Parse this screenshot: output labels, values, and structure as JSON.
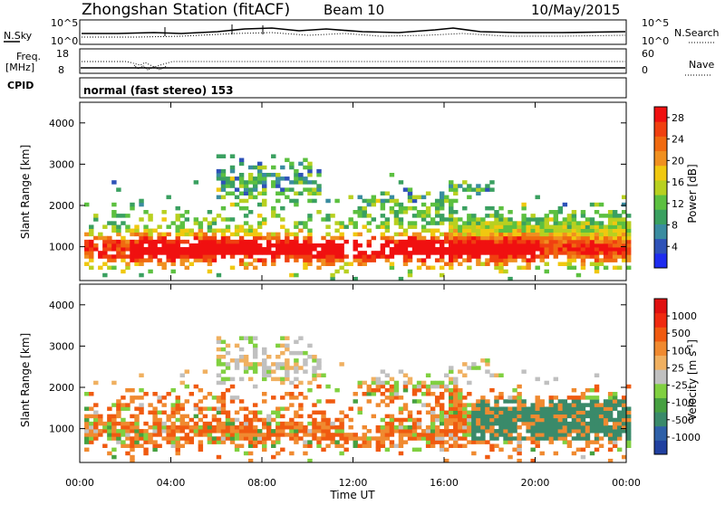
{
  "header": {
    "station": "Zhongshan Station (fitACF)",
    "beam": "Beam 10",
    "date": "10/May/2015"
  },
  "strips": {
    "nsky_label": "N.Sky",
    "nsky_ticks": [
      "10^5",
      "10^0"
    ],
    "nsearch_label": "N.Search",
    "nsearch_ticks": [
      "10^5",
      "10^0"
    ],
    "freq_label": "Freq.",
    "freq_unit": "[MHz]",
    "freq_ticks": [
      "18",
      "8"
    ],
    "nave_label": "Nave",
    "nave_ticks": [
      "60",
      "0"
    ],
    "cpid_label": "CPID",
    "cpid_value": "normal (fast stereo) 153"
  },
  "colors": {
    "power": [
      "#1e2cf0",
      "#2e52b8",
      "#3a8ca0",
      "#3aa060",
      "#5cc040",
      "#b8d020",
      "#f0c810",
      "#f09020",
      "#f06a10",
      "#f04010",
      "#f01010"
    ],
    "velocity": [
      "#2040a0",
      "#2e60a8",
      "#3a8a6a",
      "#46a040",
      "#80d040",
      "#c0c0c0",
      "#f0b060",
      "#f08a30",
      "#f05a10",
      "#f02a10",
      "#e01010"
    ]
  },
  "chart_data": [
    {
      "type": "heatmap",
      "name": "power",
      "xlabel": "",
      "ylabel": "Slant Range [km]",
      "x_ticks": [
        "00:00",
        "04:00",
        "08:00",
        "12:00",
        "16:00",
        "20:00",
        "00:00"
      ],
      "xlim": [
        0,
        24
      ],
      "ylim": [
        180,
        4500
      ],
      "y_ticks": [
        1000,
        2000,
        3000,
        4000
      ],
      "colorbar": {
        "label": "Power [dB]",
        "ticks": [
          "4",
          "8",
          "12",
          "16",
          "20",
          "24",
          "28"
        ],
        "range": [
          0,
          30
        ]
      }
    },
    {
      "type": "heatmap",
      "name": "velocity",
      "xlabel": "Time UT",
      "ylabel": "Slant Range [km]",
      "x_ticks": [
        "00:00",
        "04:00",
        "08:00",
        "12:00",
        "16:00",
        "20:00",
        "00:00"
      ],
      "xlim": [
        0,
        24
      ],
      "ylim": [
        180,
        4500
      ],
      "y_ticks": [
        1000,
        2000,
        3000,
        4000
      ],
      "colorbar": {
        "label": "Velocity [m s",
        "label_sup": "-1",
        "label_end": "]",
        "ticks": [
          "1000",
          "500",
          "100",
          "25",
          "-25",
          "-100",
          "-500",
          "-1000"
        ]
      }
    }
  ]
}
